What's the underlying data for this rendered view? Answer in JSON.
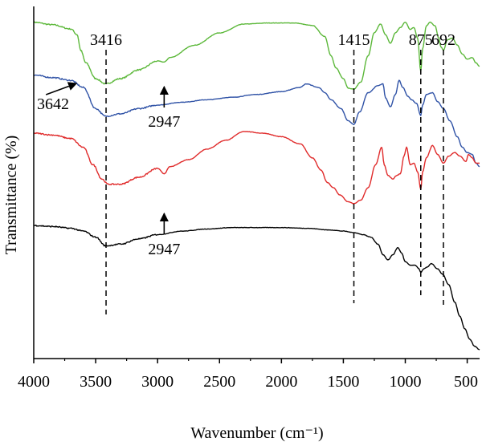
{
  "chart_data": {
    "type": "line",
    "title": "",
    "xlabel": "Wavenumber (cm⁻¹)",
    "ylabel": "Transmittance (%)",
    "xlim": [
      4000,
      400
    ],
    "ylim": [
      0,
      100
    ],
    "x_reversed": true,
    "grid": false,
    "legend": "none",
    "xticks": [
      4000,
      3500,
      3000,
      2500,
      2000,
      1500,
      1000,
      500
    ],
    "xtick_labels": [
      "4000",
      "3500",
      "3000",
      "2500",
      "2000",
      "1500",
      "1000",
      "500"
    ],
    "reference_lines": [
      {
        "label": "3416",
        "x": 3416
      },
      {
        "label": "1415",
        "x": 1415
      },
      {
        "label": "875",
        "x": 875
      },
      {
        "label": "692",
        "x": 692
      }
    ],
    "annotations": [
      {
        "label": "3642",
        "x": 3642,
        "series_index": 0
      },
      {
        "label": "2947",
        "x": 2947,
        "series_index": 0
      },
      {
        "label": "2947",
        "x": 2947,
        "series_index": 2
      }
    ],
    "series": [
      {
        "color": "#5cb83a",
        "points": [
          [
            4000,
            95.5
          ],
          [
            3850,
            94.8
          ],
          [
            3700,
            93.6
          ],
          [
            3650,
            92.0
          ],
          [
            3620,
            87.5
          ],
          [
            3580,
            84.0
          ],
          [
            3500,
            79.5
          ],
          [
            3420,
            78.0
          ],
          [
            3300,
            79.5
          ],
          [
            3150,
            82.0
          ],
          [
            3000,
            84.5
          ],
          [
            2947,
            84.2
          ],
          [
            2900,
            85.5
          ],
          [
            2700,
            89.0
          ],
          [
            2500,
            92.5
          ],
          [
            2300,
            95.0
          ],
          [
            2100,
            95.3
          ],
          [
            1900,
            95.3
          ],
          [
            1750,
            94.6
          ],
          [
            1650,
            91.5
          ],
          [
            1600,
            86.0
          ],
          [
            1560,
            82.5
          ],
          [
            1500,
            79.5
          ],
          [
            1460,
            76.8
          ],
          [
            1415,
            76.5
          ],
          [
            1360,
            78.5
          ],
          [
            1300,
            86.0
          ],
          [
            1250,
            92.5
          ],
          [
            1200,
            95.0
          ],
          [
            1160,
            92.0
          ],
          [
            1120,
            89.5
          ],
          [
            1080,
            92.5
          ],
          [
            1040,
            94.0
          ],
          [
            1000,
            95.5
          ],
          [
            960,
            93.5
          ],
          [
            930,
            94.0
          ],
          [
            900,
            91.0
          ],
          [
            875,
            81.5
          ],
          [
            860,
            88.0
          ],
          [
            830,
            94.5
          ],
          [
            800,
            95.5
          ],
          [
            760,
            94.5
          ],
          [
            730,
            91.0
          ],
          [
            712,
            88.5
          ],
          [
            692,
            87.5
          ],
          [
            660,
            90.5
          ],
          [
            620,
            91.0
          ],
          [
            580,
            89.0
          ],
          [
            540,
            86.5
          ],
          [
            500,
            85.0
          ],
          [
            460,
            85.5
          ],
          [
            430,
            84.0
          ],
          [
            400,
            83.0
          ]
        ]
      },
      {
        "color": "#2f52a6",
        "points": [
          [
            4000,
            80.5
          ],
          [
            3850,
            79.8
          ],
          [
            3700,
            79.0
          ],
          [
            3600,
            77.0
          ],
          [
            3500,
            71.0
          ],
          [
            3420,
            68.8
          ],
          [
            3300,
            69.5
          ],
          [
            3150,
            71.0
          ],
          [
            3000,
            72.0
          ],
          [
            2800,
            72.8
          ],
          [
            2600,
            73.5
          ],
          [
            2400,
            74.2
          ],
          [
            2200,
            75.0
          ],
          [
            2000,
            75.8
          ],
          [
            1850,
            77.0
          ],
          [
            1800,
            78.0
          ],
          [
            1700,
            77.0
          ],
          [
            1650,
            75.5
          ],
          [
            1600,
            73.5
          ],
          [
            1520,
            71.0
          ],
          [
            1460,
            67.5
          ],
          [
            1415,
            66.5
          ],
          [
            1370,
            70.0
          ],
          [
            1300,
            75.5
          ],
          [
            1220,
            77.5
          ],
          [
            1180,
            78.0
          ],
          [
            1160,
            74.0
          ],
          [
            1120,
            71.5
          ],
          [
            1080,
            75.0
          ],
          [
            1050,
            79.0
          ],
          [
            1020,
            77.0
          ],
          [
            980,
            74.5
          ],
          [
            950,
            73.5
          ],
          [
            910,
            72.5
          ],
          [
            875,
            69.0
          ],
          [
            860,
            72.0
          ],
          [
            830,
            75.0
          ],
          [
            780,
            75.5
          ],
          [
            740,
            73.0
          ],
          [
            692,
            71.0
          ],
          [
            640,
            67.5
          ],
          [
            580,
            63.0
          ],
          [
            540,
            60.0
          ],
          [
            500,
            58.5
          ],
          [
            460,
            58.0
          ],
          [
            430,
            55.5
          ],
          [
            400,
            54.5
          ]
        ]
      },
      {
        "color": "#e02a2a",
        "points": [
          [
            4000,
            64.0
          ],
          [
            3850,
            63.5
          ],
          [
            3700,
            62.5
          ],
          [
            3600,
            60.0
          ],
          [
            3520,
            55.0
          ],
          [
            3450,
            51.0
          ],
          [
            3400,
            49.5
          ],
          [
            3300,
            49.5
          ],
          [
            3150,
            51.5
          ],
          [
            3000,
            54.0
          ],
          [
            2947,
            52.5
          ],
          [
            2900,
            54.5
          ],
          [
            2750,
            56.5
          ],
          [
            2600,
            59.5
          ],
          [
            2450,
            62.0
          ],
          [
            2300,
            64.5
          ],
          [
            2150,
            64.0
          ],
          [
            2000,
            63.0
          ],
          [
            1850,
            61.0
          ],
          [
            1750,
            57.0
          ],
          [
            1680,
            53.5
          ],
          [
            1630,
            50.0
          ],
          [
            1580,
            48.5
          ],
          [
            1530,
            46.5
          ],
          [
            1460,
            44.5
          ],
          [
            1415,
            44.0
          ],
          [
            1360,
            45.0
          ],
          [
            1300,
            48.5
          ],
          [
            1240,
            55.0
          ],
          [
            1190,
            60.0
          ],
          [
            1170,
            55.0
          ],
          [
            1140,
            52.0
          ],
          [
            1100,
            51.0
          ],
          [
            1070,
            52.0
          ],
          [
            1040,
            52.5
          ],
          [
            1010,
            57.5
          ],
          [
            990,
            60.0
          ],
          [
            960,
            55.0
          ],
          [
            930,
            55.5
          ],
          [
            900,
            53.0
          ],
          [
            875,
            48.0
          ],
          [
            860,
            53.0
          ],
          [
            830,
            57.0
          ],
          [
            780,
            60.5
          ],
          [
            740,
            58.0
          ],
          [
            692,
            55.5
          ],
          [
            650,
            57.5
          ],
          [
            600,
            58.5
          ],
          [
            560,
            57.5
          ],
          [
            510,
            56.0
          ],
          [
            490,
            58.0
          ],
          [
            460,
            57.0
          ],
          [
            430,
            55.5
          ],
          [
            400,
            55.5
          ]
        ]
      },
      {
        "color": "#000000",
        "points": [
          [
            4000,
            37.8
          ],
          [
            3850,
            37.5
          ],
          [
            3700,
            37.0
          ],
          [
            3600,
            36.2
          ],
          [
            3500,
            34.5
          ],
          [
            3420,
            32.0
          ],
          [
            3300,
            32.5
          ],
          [
            3150,
            34.0
          ],
          [
            3000,
            35.2
          ],
          [
            2800,
            36.2
          ],
          [
            2600,
            36.8
          ],
          [
            2400,
            37.2
          ],
          [
            2200,
            37.2
          ],
          [
            2000,
            37.2
          ],
          [
            1800,
            37.0
          ],
          [
            1600,
            36.5
          ],
          [
            1500,
            36.2
          ],
          [
            1420,
            35.8
          ],
          [
            1340,
            35.2
          ],
          [
            1280,
            34.5
          ],
          [
            1220,
            32.5
          ],
          [
            1180,
            29.5
          ],
          [
            1140,
            28.0
          ],
          [
            1100,
            29.5
          ],
          [
            1060,
            31.5
          ],
          [
            1030,
            30.0
          ],
          [
            1000,
            27.5
          ],
          [
            960,
            26.5
          ],
          [
            920,
            26.5
          ],
          [
            890,
            25.5
          ],
          [
            875,
            24.5
          ],
          [
            850,
            25.5
          ],
          [
            820,
            26.0
          ],
          [
            790,
            27.0
          ],
          [
            740,
            25.5
          ],
          [
            700,
            24.0
          ],
          [
            650,
            21.0
          ],
          [
            600,
            16.0
          ],
          [
            560,
            12.0
          ],
          [
            520,
            8.5
          ],
          [
            480,
            5.5
          ],
          [
            440,
            3.5
          ],
          [
            400,
            2.5
          ]
        ]
      }
    ]
  }
}
